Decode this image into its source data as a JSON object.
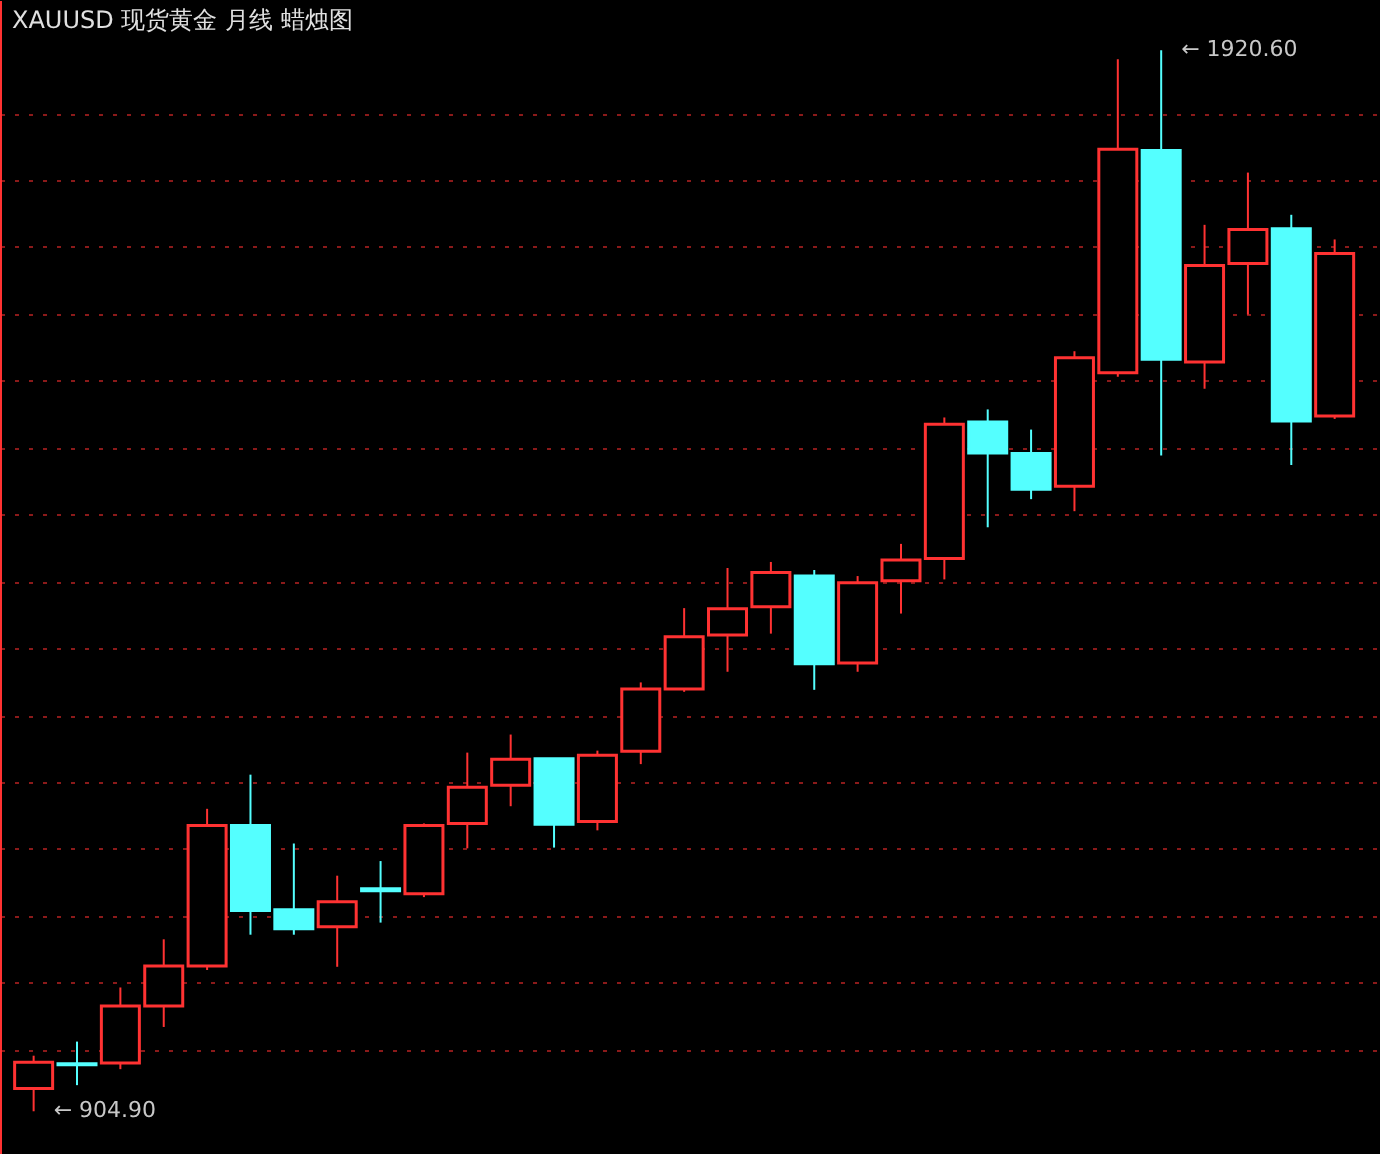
{
  "chart_data": {
    "type": "candlestick",
    "title": "XAUUSD 现货黄金 月线 蜡烛图",
    "categories": [
      null,
      null,
      null,
      null,
      null,
      null,
      null,
      null,
      null,
      null,
      null,
      null,
      null,
      null,
      null,
      null,
      null,
      null,
      null,
      null,
      null,
      null,
      null,
      null,
      null,
      null,
      null,
      null,
      null,
      null,
      null
    ],
    "ohlc": [
      [
        926.8,
        958.1,
        904.9,
        951.8
      ],
      [
        950.5,
        971.6,
        929.9,
        949.5
      ],
      [
        951.0,
        1023.4,
        945.2,
        1005.6
      ],
      [
        1005.6,
        1069.5,
        985.6,
        1044.0
      ],
      [
        1044.0,
        1194.4,
        1040.1,
        1178.5
      ],
      [
        1178.5,
        1227.1,
        1073.9,
        1097.0
      ],
      [
        1097.8,
        1161.2,
        1073.9,
        1079.7
      ],
      [
        1081.6,
        1130.4,
        1043.2,
        1105.5
      ],
      [
        1118.0,
        1144.4,
        1085.5,
        1116.0
      ],
      [
        1113.1,
        1180.4,
        1109.9,
        1178.5
      ],
      [
        1180.4,
        1248.2,
        1156.6,
        1215.0
      ],
      [
        1216.9,
        1265.5,
        1196.9,
        1241.8
      ],
      [
        1242.4,
        1243.0,
        1157.3,
        1179.6
      ],
      [
        1182.3,
        1250.1,
        1173.8,
        1245.7
      ],
      [
        1249.5,
        1315.4,
        1237.2,
        1309.1
      ],
      [
        1309.1,
        1386.5,
        1306.4,
        1359.0
      ],
      [
        1360.9,
        1424.9,
        1325.6,
        1385.9
      ],
      [
        1387.8,
        1430.7,
        1362.1,
        1420.5
      ],
      [
        1417.2,
        1423.0,
        1308.3,
        1333.3
      ],
      [
        1334.1,
        1417.2,
        1325.6,
        1410.9
      ],
      [
        1412.8,
        1448.0,
        1381.3,
        1432.6
      ],
      [
        1433.9,
        1569.0,
        1414.0,
        1562.6
      ],
      [
        1564.6,
        1576.7,
        1463.9,
        1535.0
      ],
      [
        1534.4,
        1557.4,
        1490.8,
        1500.4
      ],
      [
        1503.1,
        1632.4,
        1479.3,
        1626.1
      ],
      [
        1611.8,
        1911.9,
        1608.0,
        1825.8
      ],
      [
        1824.5,
        1920.6,
        1532.5,
        1624.7
      ],
      [
        1622.2,
        1753.4,
        1596.5,
        1714.4
      ],
      [
        1716.3,
        1803.4,
        1667.5,
        1749.0
      ],
      [
        1749.6,
        1763.0,
        1523.5,
        1565.7
      ],
      [
        1570.3,
        1739.4,
        1567.6,
        1725.9
      ]
    ],
    "colors": [
      "#ff3232",
      "#54ffff",
      "#ff3232",
      "#ff3232",
      "#ff3232",
      "#54ffff",
      "#54ffff",
      "#ff3232",
      "#54ffff",
      "#ff3232",
      "#ff3232",
      "#ff3232",
      "#54ffff",
      "#ff3232",
      "#ff3232",
      "#ff3232",
      "#ff3232",
      "#ff3232",
      "#54ffff",
      "#ff3232",
      "#ff3232",
      "#ff3232",
      "#54ffff",
      "#54ffff",
      "#ff3232",
      "#ff3232",
      "#54ffff",
      "#ff3232",
      "#ff3232",
      "#54ffff",
      "#ff3232"
    ],
    "ylim": [
      864.0,
      1968.6
    ],
    "yticks": [
      {
        "value": 963.9,
        "label": null
      },
      {
        "value": 1028.0,
        "label": null
      },
      {
        "value": 1092.0,
        "label": null
      },
      {
        "value": 1156.0,
        "label": null
      },
      {
        "value": 1220.1,
        "label": null
      },
      {
        "value": 1284.1,
        "label": null
      },
      {
        "value": 1348.2,
        "label": null
      },
      {
        "value": 1412.2,
        "label": null
      },
      {
        "value": 1476.2,
        "label": null
      },
      {
        "value": 1540.2,
        "label": null
      },
      {
        "value": 1604.2,
        "label": null
      },
      {
        "value": 1668.3,
        "label": null
      },
      {
        "value": 1732.3,
        "label": null
      },
      {
        "value": 1796.3,
        "label": null
      },
      {
        "value": 1860.4,
        "label": null
      }
    ],
    "grid": "y",
    "annotations": [
      "← 1920.60",
      "← 904.90"
    ]
  }
}
